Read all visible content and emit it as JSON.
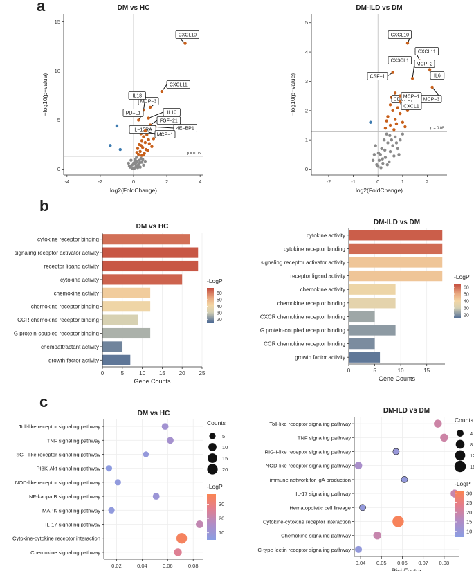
{
  "panels": {
    "a": "a",
    "b": "b",
    "c": "c"
  },
  "chart_data": [
    {
      "id": "volcano-dm-hc",
      "type": "scatter",
      "title": "DM vs HC",
      "xlabel": "log2(FoldChange)",
      "ylabel": "−log10(p−value)",
      "xlim": [
        -4.2,
        4.2
      ],
      "ylim": [
        -0.6,
        15.8
      ],
      "xticks": [
        -4,
        -2,
        0,
        2,
        4
      ],
      "yticks": [
        0,
        5,
        10,
        15
      ],
      "threshold": 1.3,
      "threshold_label": "p = 0.05",
      "colors": {
        "up": "#c8601b",
        "down": "#3d7bb0",
        "ns": "#8a8a8a"
      },
      "labeled_points": [
        {
          "name": "CXCL10",
          "x": 3.1,
          "y": 12.8
        },
        {
          "name": "CXCL11",
          "x": 1.7,
          "y": 7.9
        },
        {
          "name": "MCP−3",
          "x": 1.0,
          "y": 6.3
        },
        {
          "name": "IL18",
          "x": 0.6,
          "y": 6.0
        },
        {
          "name": "IL10",
          "x": 0.9,
          "y": 5.2
        },
        {
          "name": "PD−L1",
          "x": 0.3,
          "y": 5.0
        },
        {
          "name": "FGF−21",
          "x": 1.0,
          "y": 4.5
        },
        {
          "name": "4E−BP1",
          "x": 1.3,
          "y": 4.3
        },
        {
          "name": "IL−15RA",
          "x": 0.4,
          "y": 4.0
        },
        {
          "name": "MCP−1",
          "x": 0.7,
          "y": 3.9
        }
      ],
      "up_points": [
        [
          0.45,
          3.6
        ],
        [
          0.6,
          3.3
        ],
        [
          0.8,
          3.5
        ],
        [
          0.5,
          2.9
        ],
        [
          0.7,
          2.7
        ],
        [
          0.9,
          3.0
        ],
        [
          0.35,
          2.5
        ],
        [
          0.55,
          2.2
        ],
        [
          0.75,
          2.0
        ],
        [
          0.4,
          1.8
        ],
        [
          0.65,
          1.6
        ],
        [
          0.3,
          1.5
        ],
        [
          0.85,
          1.9
        ],
        [
          0.5,
          1.4
        ],
        [
          1.1,
          2.3
        ],
        [
          0.25,
          2.1
        ],
        [
          0.95,
          2.6
        ],
        [
          0.6,
          1.45
        ],
        [
          0.2,
          1.7
        ],
        [
          1.2,
          3.1
        ],
        [
          0.45,
          2.4
        ]
      ],
      "down_points": [
        [
          -1.0,
          4.4
        ],
        [
          -1.4,
          2.4
        ],
        [
          -0.8,
          2.0
        ]
      ],
      "ns_points": [
        [
          -0.2,
          0.2
        ],
        [
          -0.1,
          0.4
        ],
        [
          0.05,
          0.1
        ],
        [
          0.15,
          0.3
        ],
        [
          0.3,
          0.5
        ],
        [
          0.4,
          0.2
        ],
        [
          -0.3,
          0.6
        ],
        [
          0.2,
          0.8
        ],
        [
          0.1,
          1.0
        ],
        [
          0.35,
          0.9
        ],
        [
          0.5,
          0.7
        ],
        [
          -0.15,
          0.9
        ],
        [
          0.25,
          0.15
        ],
        [
          0.45,
          1.1
        ],
        [
          0.6,
          0.4
        ],
        [
          0.0,
          0.6
        ],
        [
          -0.05,
          0.05
        ],
        [
          0.12,
          0.55
        ],
        [
          0.28,
          0.35
        ],
        [
          0.38,
          0.65
        ],
        [
          0.18,
          1.2
        ],
        [
          0.55,
          1.0
        ],
        [
          0.7,
          0.8
        ],
        [
          -0.25,
          0.3
        ],
        [
          0.08,
          0.75
        ]
      ]
    },
    {
      "id": "volcano-dmild-dm",
      "type": "scatter",
      "title": "DM-ILD vs DM",
      "xlabel": "log2(FoldChange)",
      "ylabel": "−log10(p−value)",
      "xlim": [
        -2.7,
        2.8
      ],
      "ylim": [
        -0.2,
        5.3
      ],
      "xticks": [
        -2,
        -1,
        0,
        1,
        2
      ],
      "yticks": [
        0,
        1,
        2,
        3,
        4,
        5
      ],
      "threshold": 1.3,
      "threshold_label": "p = 0.05",
      "colors": {
        "up": "#c8601b",
        "down": "#3d7bb0",
        "ns": "#8a8a8a"
      },
      "labeled_points": [
        {
          "name": "CXCL10",
          "x": 1.2,
          "y": 4.3
        },
        {
          "name": "CXCL11",
          "x": 1.7,
          "y": 3.7
        },
        {
          "name": "CX3CL1",
          "x": 1.0,
          "y": 3.7
        },
        {
          "name": "IL6",
          "x": 2.1,
          "y": 3.4
        },
        {
          "name": "CSF−1",
          "x": 0.6,
          "y": 3.3
        },
        {
          "name": "MCP−2",
          "x": 1.4,
          "y": 3.1
        },
        {
          "name": "MCP−3",
          "x": 2.2,
          "y": 2.8
        },
        {
          "name": "CDCP1",
          "x": 0.7,
          "y": 2.6
        },
        {
          "name": "MCP−1",
          "x": 0.9,
          "y": 2.5
        },
        {
          "name": "CXCL1",
          "x": 0.9,
          "y": 2.3
        }
      ],
      "up_points": [
        [
          0.5,
          2.2
        ],
        [
          0.6,
          2.0
        ],
        [
          0.8,
          2.1
        ],
        [
          0.4,
          1.8
        ],
        [
          0.7,
          1.7
        ],
        [
          0.9,
          1.9
        ],
        [
          0.5,
          1.5
        ],
        [
          1.0,
          1.6
        ],
        [
          0.3,
          1.4
        ],
        [
          1.2,
          2.0
        ],
        [
          0.65,
          1.35
        ],
        [
          1.4,
          2.4
        ],
        [
          0.35,
          1.65
        ],
        [
          1.1,
          1.45
        ],
        [
          0.55,
          2.45
        ],
        [
          0.75,
          1.55
        ]
      ],
      "down_points": [
        [
          -0.3,
          1.6
        ]
      ],
      "ns_points": [
        [
          0.0,
          0.1
        ],
        [
          0.05,
          0.3
        ],
        [
          -0.05,
          0.15
        ],
        [
          0.1,
          0.5
        ],
        [
          0.2,
          0.2
        ],
        [
          0.15,
          0.7
        ],
        [
          0.3,
          0.4
        ],
        [
          0.4,
          0.9
        ],
        [
          0.25,
          1.0
        ],
        [
          0.5,
          0.6
        ],
        [
          0.6,
          0.8
        ],
        [
          0.7,
          1.1
        ],
        [
          0.35,
          1.2
        ],
        [
          -0.15,
          0.5
        ],
        [
          -0.1,
          0.8
        ],
        [
          0.45,
          0.25
        ],
        [
          0.55,
          1.0
        ],
        [
          0.8,
          0.7
        ],
        [
          0.9,
          1.0
        ],
        [
          1.0,
          1.2
        ],
        [
          0.65,
          0.45
        ],
        [
          -0.2,
          0.3
        ],
        [
          0.12,
          0.05
        ],
        [
          0.02,
          0.55
        ],
        [
          0.28,
          0.65
        ],
        [
          0.38,
          0.15
        ],
        [
          0.75,
          0.9
        ],
        [
          0.18,
          0.35
        ],
        [
          0.48,
          1.15
        ],
        [
          0.85,
          0.5
        ]
      ]
    },
    {
      "id": "bar-dm-hc",
      "type": "bar",
      "orientation": "horizontal",
      "title": "DM vs HC",
      "xlabel": "Gene Counts",
      "xlim": [
        0,
        25
      ],
      "xticks": [
        0,
        5,
        10,
        15,
        20,
        25
      ],
      "legend_title": "-LogP",
      "legend_ticks": [
        20,
        30,
        40,
        50,
        60
      ],
      "legend_range": [
        15,
        68
      ],
      "categories": [
        "cytokine receptor binding",
        "signaling receptor activator activity",
        "receptor ligand activity",
        "cytokine activity",
        "chemokine activity",
        "chemokine receptor binding",
        "CCR chemokine receptor binding",
        "G protein-coupled receptor binding",
        "chemoattractant activity",
        "growth factor activity"
      ],
      "values": [
        22,
        24,
        24,
        20,
        12,
        12,
        9,
        12,
        5,
        7
      ],
      "logp": [
        62,
        66,
        66,
        64,
        44,
        40,
        32,
        26,
        19,
        17
      ]
    },
    {
      "id": "bar-dmild-dm",
      "type": "bar",
      "orientation": "horizontal",
      "title": "DM-ILD vs DM",
      "xlabel": "Gene Counts",
      "xlim": [
        0,
        18.5
      ],
      "xticks": [
        0,
        5,
        10,
        15
      ],
      "legend_title": "-LogP",
      "legend_ticks": [
        20,
        30,
        40,
        50,
        60
      ],
      "legend_range": [
        15,
        65
      ],
      "categories": [
        "cytokine activity",
        "cytokine receptor binding",
        "signaling receptor activator activity",
        "receptor ligand activity",
        "chemokine activity",
        "chemokine receptor binding",
        "CXCR chemokine receptor binding",
        "G protein-coupled receptor binding",
        "CCR chemokine receptor binding",
        "growth factor activity"
      ],
      "values": [
        18,
        18,
        18,
        18,
        9,
        9,
        5,
        9,
        5,
        6
      ],
      "logp": [
        62,
        60,
        44,
        44,
        38,
        35,
        24,
        22,
        20,
        17
      ]
    },
    {
      "id": "dot-dm-hc",
      "type": "scatter",
      "title": "DM vs HC",
      "xlabel": "RichFactor",
      "xlim": [
        0.01,
        0.088
      ],
      "xticks": [
        0.02,
        0.04,
        0.06,
        0.08
      ],
      "xtick_labels": [
        "0.02",
        "0.04",
        "0.06",
        "0.08"
      ],
      "size_title": "Counts",
      "size_ticks": [
        5,
        10,
        15,
        20
      ],
      "color_title": "-LogP",
      "color_ticks": [
        10,
        20,
        30
      ],
      "color_range": [
        5,
        37
      ],
      "categories": [
        "Toll-like receptor signaling pathway",
        "TNF signaling pathway",
        "RIG-I-like receptor signaling pathway",
        "PI3K-Akt signaling pathway",
        "NOD-like receptor signaling pathway",
        "NF-kappa B signaling pathway",
        "MAPK signaling pathway",
        "IL-17 signaling pathway",
        "Cytokine-cytokine receptor interaction",
        "Chemokine signaling pathway"
      ],
      "richfactor": [
        0.058,
        0.062,
        0.043,
        0.014,
        0.021,
        0.051,
        0.016,
        0.085,
        0.071,
        0.068
      ],
      "counts": [
        6,
        6,
        4,
        5,
        5,
        6,
        5,
        8,
        20,
        9
      ],
      "logp": [
        12,
        13,
        8,
        6,
        7,
        10,
        7,
        20,
        35,
        26
      ]
    },
    {
      "id": "dot-dmild-dm",
      "type": "scatter",
      "title": "DM-ILD vs DM",
      "xlabel": "RichFactor",
      "xlim": [
        0.037,
        0.087
      ],
      "xticks": [
        0.04,
        0.05,
        0.06,
        0.07,
        0.08
      ],
      "xtick_labels": [
        "0.04",
        "0.05",
        "0.06",
        "0.07",
        "0.08"
      ],
      "size_title": "Counts",
      "size_ticks": [
        4,
        8,
        12,
        16
      ],
      "color_title": "-LogP",
      "color_ticks": [
        10,
        15,
        20,
        25,
        30
      ],
      "color_range": [
        7,
        31
      ],
      "categories": [
        "Toll-like receptor signaling pathway",
        "TNF signaling pathway",
        "RIG-I-like receptor signaling pathway",
        "NOD-like receptor signaling pathway",
        "immune network for IgA production",
        "IL-17 signaling pathway",
        "Hematopoietic cell lineage",
        "Cytokine-cytokine receptor interaction",
        "Chemokine signaling pathway",
        "C-type lectin receptor signaling pathway"
      ],
      "richfactor": [
        0.077,
        0.08,
        0.057,
        0.039,
        0.061,
        0.085,
        0.041,
        0.058,
        0.048,
        0.039
      ],
      "counts": [
        6,
        6,
        3,
        5,
        3,
        6,
        3,
        16,
        6,
        4
      ],
      "logp": [
        20,
        20,
        10,
        14,
        9,
        19,
        9,
        30,
        19,
        9
      ]
    }
  ]
}
